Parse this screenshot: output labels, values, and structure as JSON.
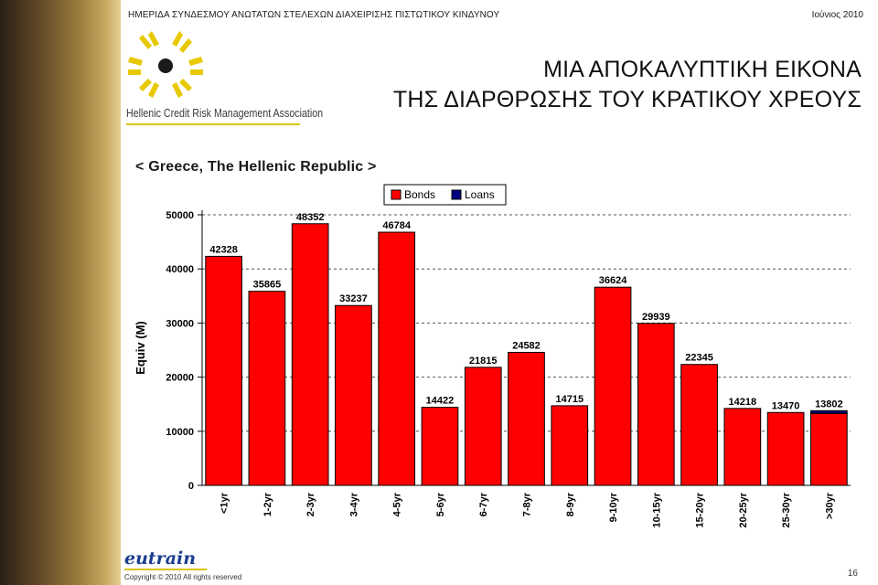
{
  "header": {
    "left_text": "ΗΜΕΡΙΔΑ ΣΥΝΔΕΣΜΟΥ ΑΝΩΤΑΤΩΝ ΣΤΕΛΕΧΩΝ ΔΙΑΧΕΙΡΙΣΗΣ ΠΙΣΤΩΤΙΚΟΥ ΚΙΝΔΥΝΟΥ",
    "right_text": "Ιούνιος 2010"
  },
  "logo": {
    "text": "Hellenic Credit Risk Management Association",
    "colors": {
      "yellow": "#e8c900",
      "dark": "#1a1a1a"
    }
  },
  "title": {
    "line1": "ΜΙΑ ΑΠΟΚΑΛΥΠΤΙΚΗ ΕΙΚΟΝΑ",
    "line2": "ΤΗΣ ΔΙΑΡΘΡΩΣΗΣ ΤΟΥ ΚΡΑΤΙΚΟΥ ΧΡΕΟΥΣ"
  },
  "subtitle": "< Greece, The Hellenic Republic >",
  "chart_data": {
    "type": "bar",
    "stacked": true,
    "categories": [
      "<1yr",
      "1-2yr",
      "2-3yr",
      "3-4yr",
      "4-5yr",
      "5-6yr",
      "6-7yr",
      "7-8yr",
      "8-9yr",
      "9-10yr",
      "10-15yr",
      "15-20yr",
      "20-25yr",
      "25-30yr",
      ">30yr"
    ],
    "series": [
      {
        "name": "Bonds",
        "color": "#ff0000",
        "values": [
          42328,
          35865,
          48352,
          33237,
          46784,
          14422,
          21815,
          24582,
          14715,
          36624,
          29939,
          22345,
          14218,
          13470,
          13302
        ]
      },
      {
        "name": "Loans",
        "color": "#000080",
        "values": [
          0,
          0,
          0,
          0,
          0,
          0,
          0,
          0,
          0,
          0,
          0,
          0,
          0,
          0,
          500
        ]
      }
    ],
    "totals": [
      "42328",
      "35865",
      "48352",
      "33237",
      "46784",
      "14422",
      "21815",
      "24582",
      "14715",
      "36624",
      "29939",
      "22345",
      "14218",
      "13470",
      "13802"
    ],
    "ylabel": "Equiv (M)",
    "ylim": [
      0,
      50000
    ],
    "yticks": [
      "0",
      "10000",
      "20000",
      "30000",
      "40000",
      "50000"
    ],
    "ytick_values": [
      0,
      10000,
      20000,
      30000,
      40000,
      50000
    ],
    "grid": true,
    "legend_position": "top-center"
  },
  "footer": {
    "brand": "eutrain",
    "copyright": "Copyright © 2010 All rights reserved",
    "page_number": "16"
  }
}
